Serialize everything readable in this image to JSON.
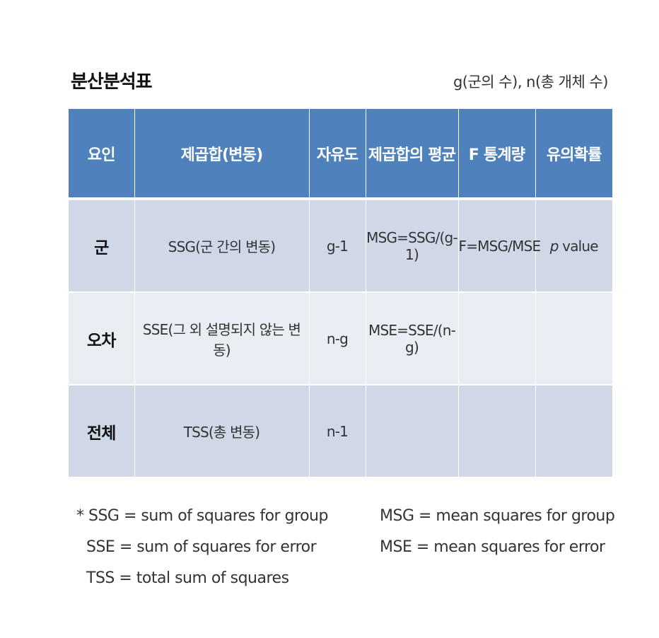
{
  "title": "분산분석표",
  "note": "g(군의 수), n(총 개체 수)",
  "table": {
    "headers": [
      "요인",
      "제곱합(변동)",
      "자유도",
      "제곱합의 평균",
      "F 통계량",
      "유의확률"
    ],
    "rows": [
      {
        "factor": "군",
        "ss": "SSG(군 간의 변동)",
        "df": "g-1",
        "ms": "MSG=SSG/(g-1)",
        "f": "F=MSG/MSE",
        "p_italic": "p",
        "p_rest": " value"
      },
      {
        "factor": "오차",
        "ss": "SSE(그 외 설명되지 않는 변동)",
        "df": "n-g",
        "ms": "MSE=SSE/(n-g)",
        "f": "",
        "p": ""
      },
      {
        "factor": "전체",
        "ss": "TSS(총 변동)",
        "df": "n-1",
        "ms": "",
        "f": "",
        "p": ""
      }
    ]
  },
  "footnotes": {
    "left": [
      "* SSG = sum of squares for group",
      "SSE = sum of squares for error",
      "TSS = total sum of squares"
    ],
    "right": [
      "MSG = mean squares for group",
      "MSE = mean squares for error"
    ]
  },
  "colors": {
    "header_bg": "#4f81bd",
    "row_dark": "#d0d8e8",
    "row_light": "#e9edf4"
  }
}
